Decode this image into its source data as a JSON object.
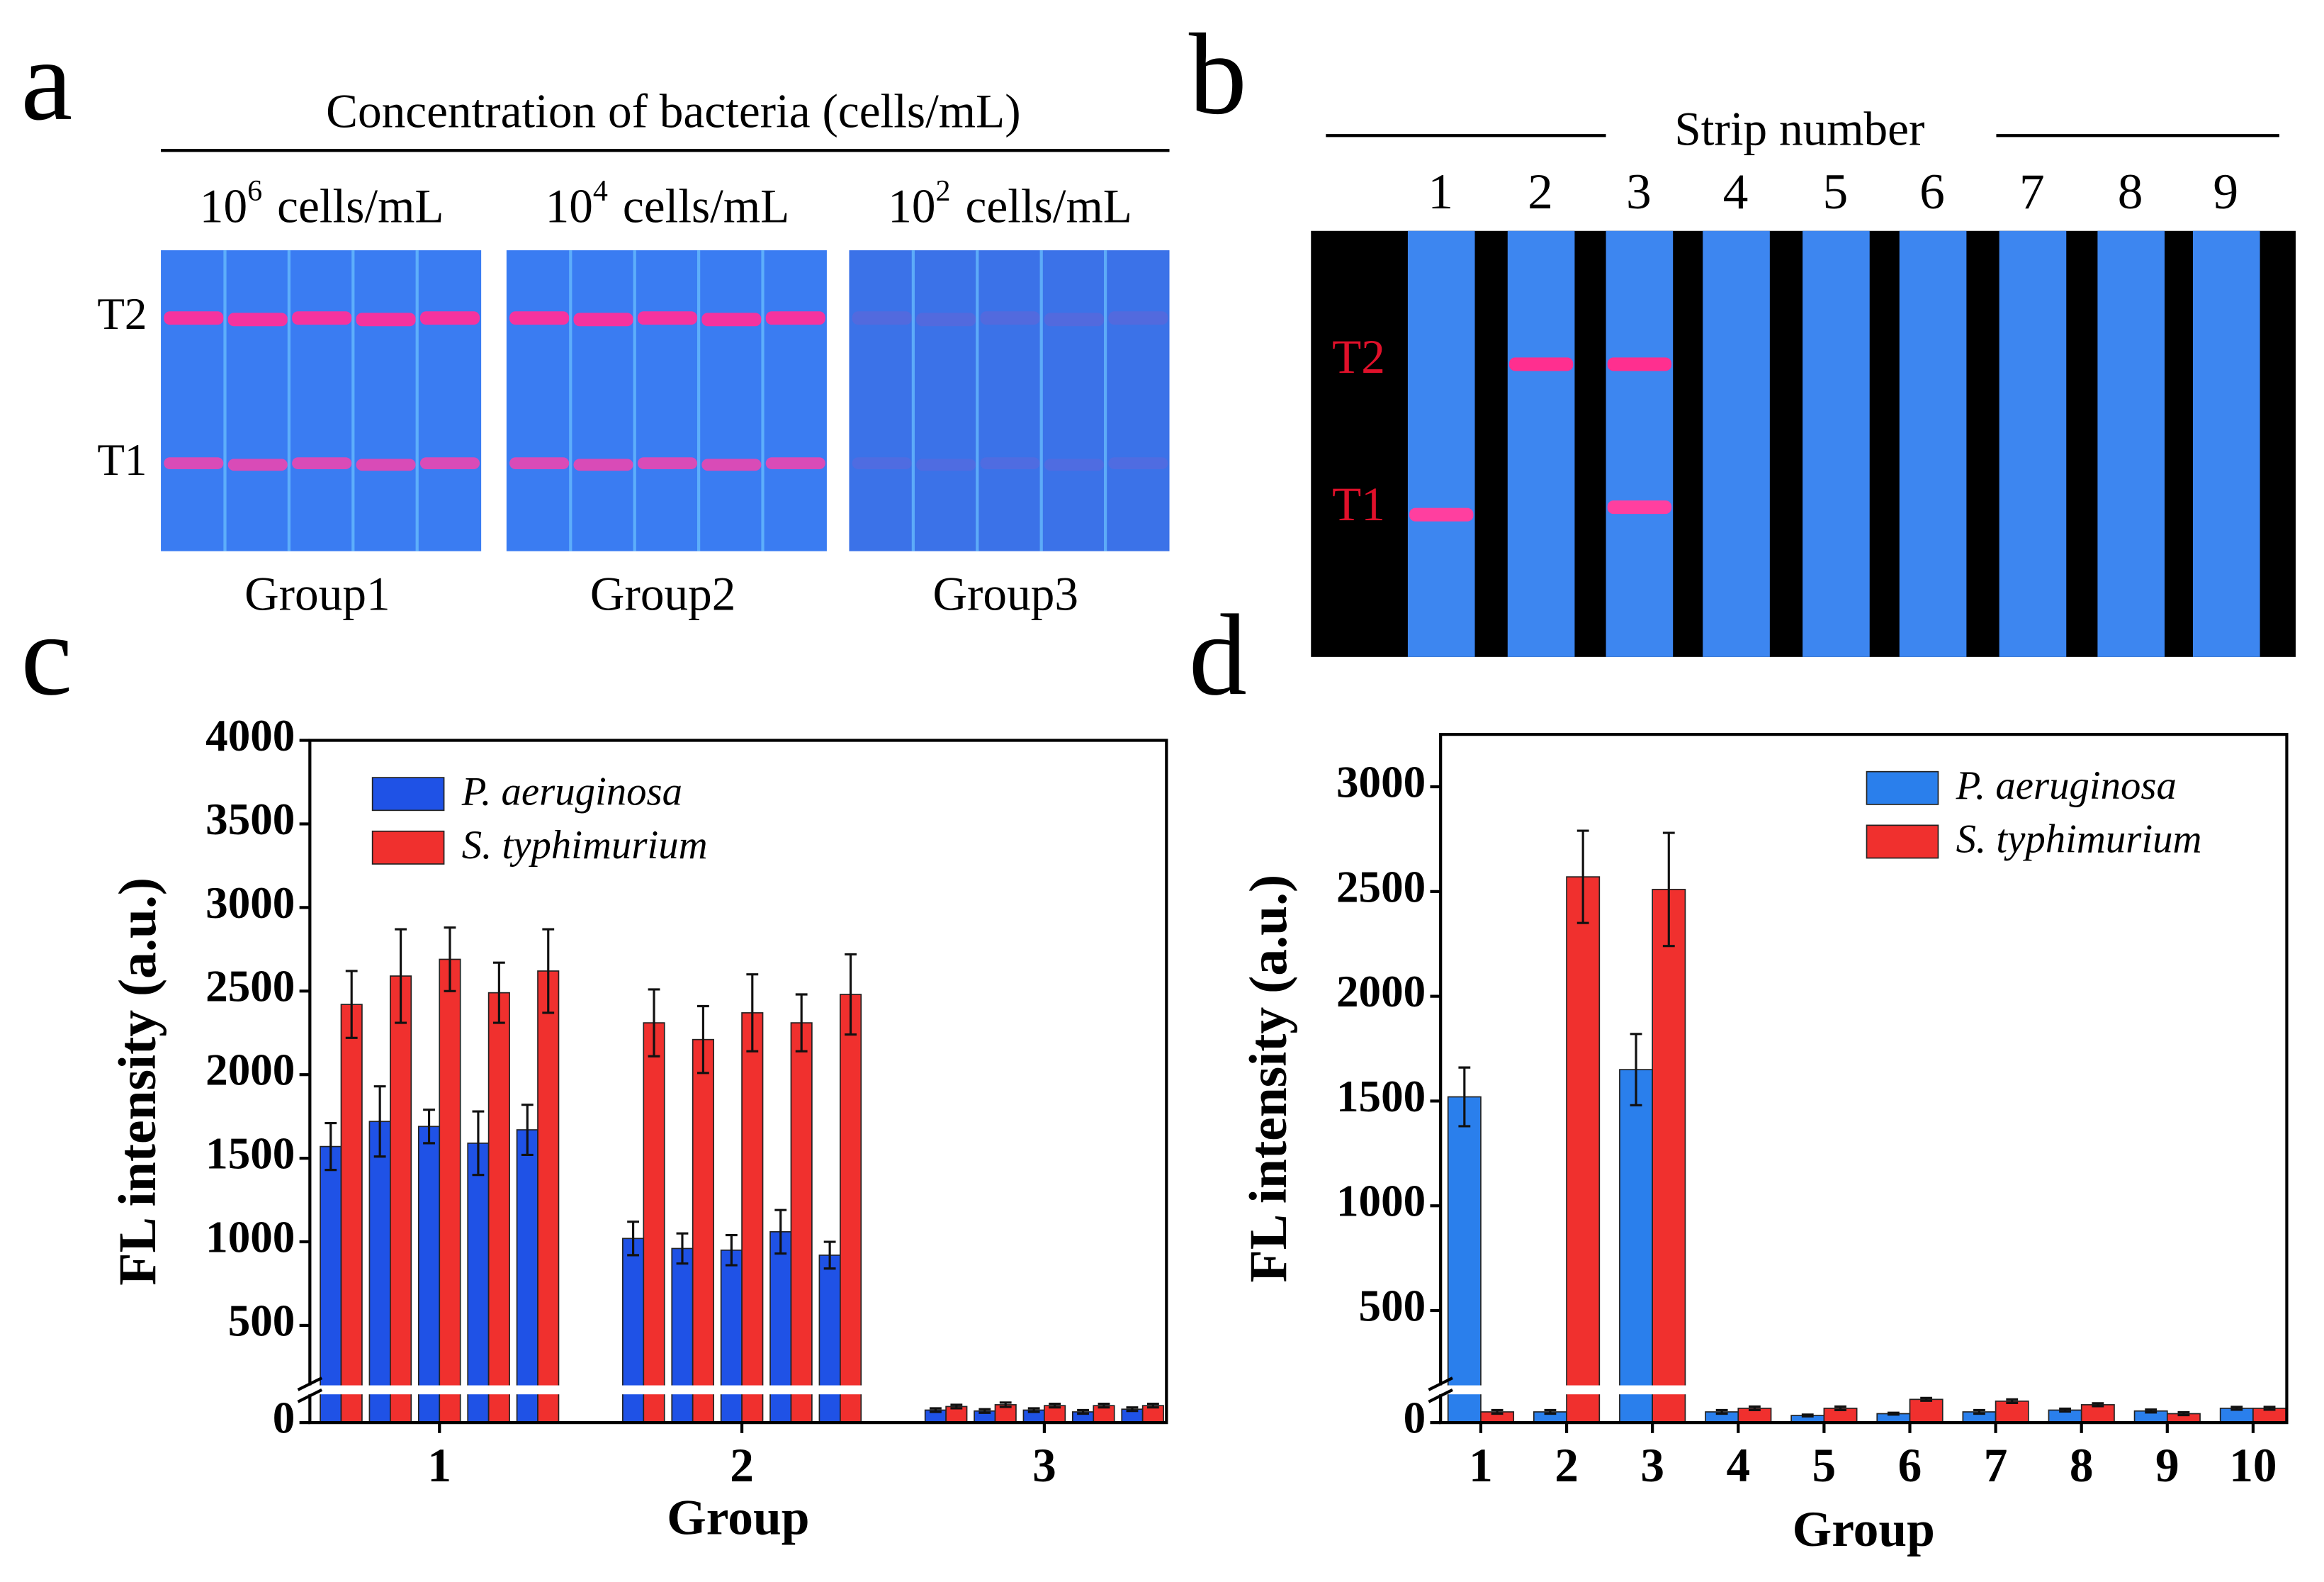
{
  "panel_a": {
    "label": "a",
    "title": "Concentration of bacteria (cells/mL)",
    "columns": [
      {
        "base": "10",
        "exponent": "6",
        "unit": "cells/mL",
        "group": "Group1"
      },
      {
        "base": "10",
        "exponent": "4",
        "unit": "cells/mL",
        "group": "Group2"
      },
      {
        "base": "10",
        "exponent": "2",
        "unit": "cells/mL",
        "group": "Group3"
      }
    ],
    "bands": [
      "T2",
      "T1"
    ]
  },
  "panel_b": {
    "label": "b",
    "title": "Strip number",
    "strips": [
      "1",
      "2",
      "3",
      "4",
      "5",
      "6",
      "7",
      "8",
      "9"
    ],
    "bands": [
      "T2",
      "T1"
    ]
  },
  "chart_data": [
    {
      "type": "bar",
      "panel_label": "c",
      "xlabel": "Group",
      "ylabel": "FL intensity (a.u.)",
      "categories": [
        null,
        null,
        "1",
        null,
        null,
        null,
        null,
        "2",
        null,
        null,
        null,
        null,
        "3",
        null,
        null
      ],
      "series": [
        {
          "name": "P. aeruginosa",
          "color": "#1f52e6",
          "values": [
            1570,
            1720,
            1690,
            1590,
            1670,
            1020,
            960,
            950,
            1060,
            920,
            70,
            65,
            70,
            60,
            75
          ],
          "errors": [
            140,
            210,
            100,
            190,
            150,
            100,
            90,
            90,
            130,
            80,
            10,
            10,
            10,
            10,
            10
          ]
        },
        {
          "name": "S. typhimurium",
          "color": "#f0302e",
          "values": [
            2420,
            2590,
            2690,
            2490,
            2620,
            2310,
            2210,
            2370,
            2310,
            2480,
            90,
            100,
            95,
            95,
            95
          ],
          "errors": [
            200,
            280,
            190,
            180,
            250,
            200,
            200,
            230,
            170,
            240,
            10,
            12,
            10,
            10,
            10
          ]
        }
      ],
      "ylim": [
        0,
        4000
      ],
      "yticks": [
        0,
        500,
        1000,
        1500,
        2000,
        2500,
        3000,
        3500,
        4000
      ],
      "ybreak": 150,
      "legend": "upper left"
    },
    {
      "type": "bar",
      "panel_label": "d",
      "xlabel": "Group",
      "ylabel": "FL intensity (a.u.)",
      "categories": [
        "1",
        "2",
        "3",
        "4",
        "5",
        "6",
        "7",
        "8",
        "9",
        "10"
      ],
      "series": [
        {
          "name": "P. aeruginosa",
          "color": "#2a7fec",
          "values": [
            1520,
            60,
            1650,
            60,
            40,
            50,
            60,
            70,
            65,
            80
          ],
          "errors": [
            140,
            10,
            170,
            10,
            5,
            5,
            10,
            8,
            8,
            8
          ]
        },
        {
          "name": "S. typhimurium",
          "color": "#f0302e",
          "values": [
            60,
            2570,
            2510,
            80,
            80,
            130,
            120,
            100,
            50,
            80
          ],
          "errors": [
            10,
            220,
            270,
            10,
            10,
            8,
            10,
            8,
            8,
            8
          ]
        }
      ],
      "ylim": [
        0,
        3250
      ],
      "yticks": [
        0,
        500,
        1000,
        1500,
        2000,
        2500,
        3000
      ],
      "ybreak": 150,
      "legend": "upper right"
    }
  ]
}
